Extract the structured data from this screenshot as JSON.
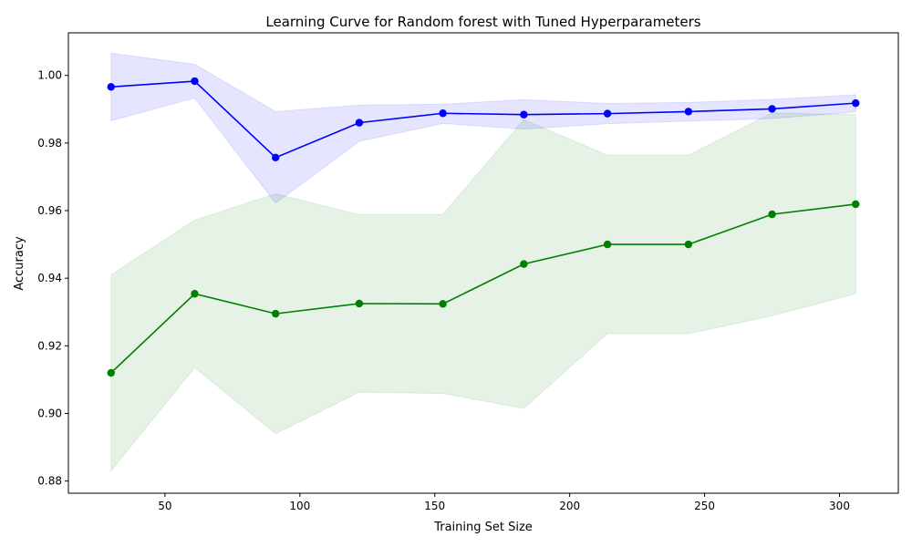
{
  "chart_data": {
    "type": "line",
    "title": "Learning Curve for Random forest with Tuned Hyperparameters",
    "xlabel": "Training Set Size",
    "ylabel": "Accuracy",
    "xlim": [
      14.2,
      321.8
    ],
    "ylim": [
      0.8764,
      1.0126
    ],
    "xticks": [
      50,
      100,
      150,
      200,
      250,
      300
    ],
    "yticks": [
      0.88,
      0.9,
      0.92,
      0.94,
      0.96,
      0.98,
      1.0
    ],
    "ytick_labels": [
      "0.88",
      "0.90",
      "0.92",
      "0.94",
      "0.96",
      "0.98",
      "1.00"
    ],
    "grid": false,
    "legend": false,
    "x": [
      30,
      61,
      91,
      122,
      153,
      183,
      214,
      244,
      275,
      306
    ],
    "series": [
      {
        "color": "#0000ff",
        "band_color": "#0000ff",
        "values": [
          0.9966,
          0.9983,
          0.9757,
          0.986,
          0.9888,
          0.9884,
          0.9887,
          0.9893,
          0.9901,
          0.9918
        ],
        "lower": [
          0.9866,
          0.9933,
          0.9622,
          0.9805,
          0.9858,
          0.9841,
          0.9857,
          0.9865,
          0.9872,
          0.9892
        ],
        "upper": [
          1.0066,
          1.0033,
          0.9893,
          0.9912,
          0.9915,
          0.9928,
          0.9917,
          0.992,
          0.9929,
          0.9943
        ]
      },
      {
        "color": "#008000",
        "band_color": "#008000",
        "values": [
          0.912,
          0.9354,
          0.9295,
          0.9325,
          0.9324,
          0.9442,
          0.95,
          0.95,
          0.9589,
          0.9619
        ],
        "lower": [
          0.883,
          0.9136,
          0.894,
          0.9063,
          0.9059,
          0.9015,
          0.9236,
          0.9236,
          0.9289,
          0.9354
        ],
        "upper": [
          0.941,
          0.9572,
          0.965,
          0.9588,
          0.9589,
          0.9869,
          0.9764,
          0.9764,
          0.9889,
          0.9884
        ]
      }
    ]
  }
}
